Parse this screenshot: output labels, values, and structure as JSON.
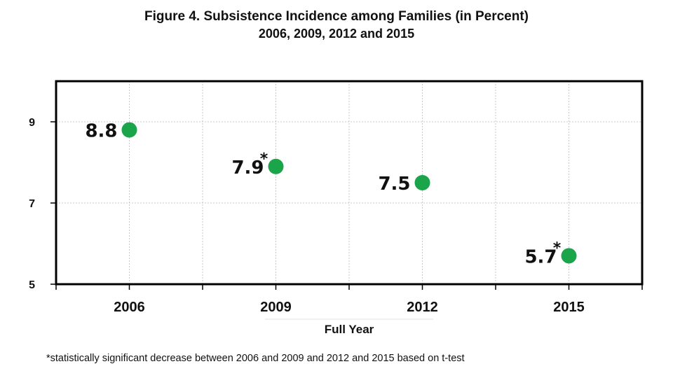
{
  "chart_data": {
    "type": "scatter",
    "title": "Figure 4. Subsistence Incidence among Families (in Percent)",
    "subtitle": "2006, 2009, 2012 and 2015",
    "xlabel": "Full Year",
    "ylabel": "",
    "categories": [
      "2006",
      "2009",
      "2012",
      "2015"
    ],
    "series": [
      {
        "values": [
          8.8,
          7.9,
          7.5,
          5.7
        ],
        "data_labels": [
          "8.8",
          "7.9",
          "7.5",
          "5.7"
        ],
        "significance_marks": [
          "",
          "*",
          "",
          "*"
        ]
      }
    ],
    "ylim": [
      5,
      10
    ],
    "yticks": [
      5,
      7,
      9
    ],
    "grid": true,
    "legend": "none",
    "colors": {
      "marker": "#1aa54a",
      "frame": "#000000",
      "grid": "#c8c8c8",
      "text": "#111111"
    }
  },
  "footnote": "*statistically significant decrease between 2006 and 2009 and 2012 and 2015 based on t-test"
}
